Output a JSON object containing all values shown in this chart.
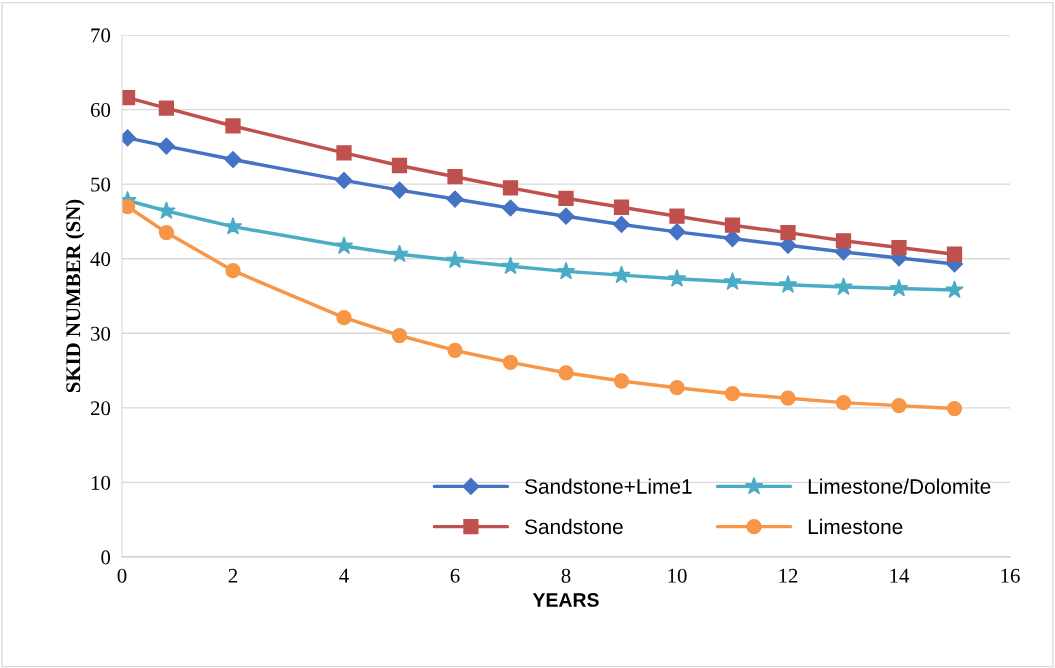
{
  "chart_data": {
    "type": "line",
    "xlabel": "YEARS",
    "ylabel": "SKID NUMBER (SN)",
    "x": [
      0.1,
      0.8,
      2,
      4,
      5,
      6,
      7,
      8,
      9,
      10,
      11,
      12,
      13,
      14,
      15
    ],
    "series": [
      {
        "name": "Sandstone+Lime1",
        "color": "#4472c4",
        "marker": "diamond",
        "values": [
          56.2,
          55.1,
          53.3,
          50.5,
          49.2,
          48.0,
          46.8,
          45.7,
          44.6,
          43.6,
          42.7,
          41.8,
          40.9,
          40.1,
          39.3
        ]
      },
      {
        "name": "Sandstone",
        "color": "#c0504d",
        "marker": "square",
        "values": [
          61.6,
          60.2,
          57.8,
          54.2,
          52.5,
          51.0,
          49.5,
          48.1,
          46.9,
          45.7,
          44.5,
          43.5,
          42.4,
          41.5,
          40.6
        ]
      },
      {
        "name": "Limestone/Dolomite",
        "color": "#4bacc6",
        "marker": "star",
        "values": [
          47.8,
          46.4,
          44.3,
          41.7,
          40.6,
          39.8,
          39.0,
          38.3,
          37.8,
          37.3,
          36.9,
          36.5,
          36.2,
          36.0,
          35.8
        ]
      },
      {
        "name": "Limestone",
        "color": "#f79646",
        "marker": "circle",
        "values": [
          47.0,
          43.5,
          38.4,
          32.1,
          29.7,
          27.7,
          26.1,
          24.7,
          23.6,
          22.7,
          21.9,
          21.3,
          20.7,
          20.3,
          19.9
        ]
      }
    ],
    "xlim": [
      0,
      16
    ],
    "xticks": [
      0,
      2,
      4,
      6,
      8,
      10,
      12,
      14,
      16
    ],
    "ylim": [
      0,
      70
    ],
    "yticks": [
      0,
      10,
      20,
      30,
      40,
      50,
      60,
      70
    ],
    "grid": "y",
    "legend": "bottom right",
    "line_style": "solid"
  }
}
